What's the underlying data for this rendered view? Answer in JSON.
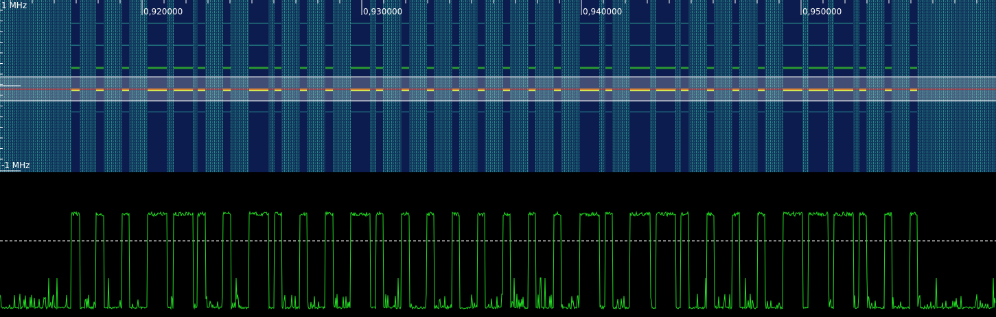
{
  "freq_axis": {
    "top_label": "1 MHz",
    "bottom_label": "-1 MHz"
  },
  "time_axis": {
    "labels": [
      "0,920000",
      "0,930000",
      "0,940000",
      "0,950000"
    ]
  }
}
